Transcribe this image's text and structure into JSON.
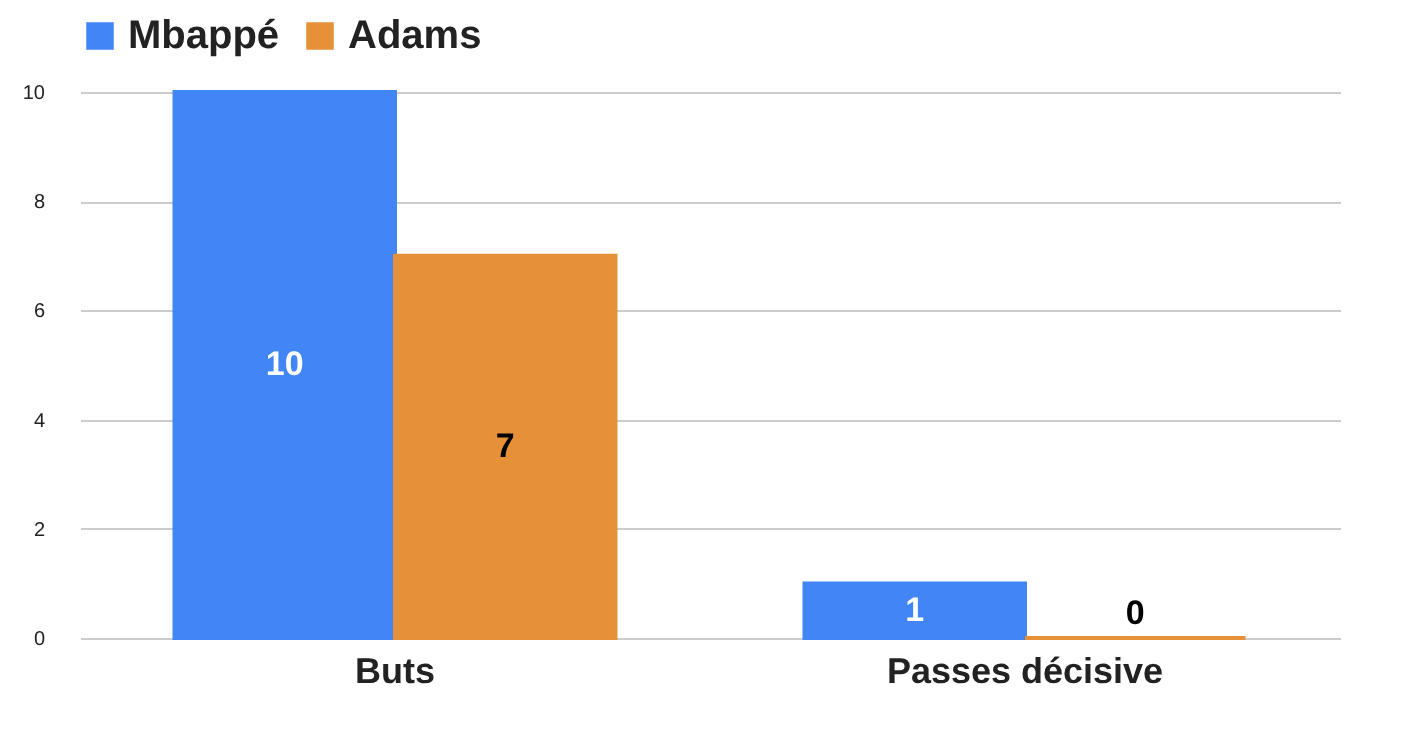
{
  "chart_data": {
    "type": "bar",
    "categories": [
      "Buts",
      "Passes décisive"
    ],
    "series": [
      {
        "name": "Mbappé",
        "color": "#4285f4",
        "values": [
          10,
          1
        ]
      },
      {
        "name": "Adams",
        "color": "#e69138",
        "values": [
          7,
          0
        ]
      }
    ],
    "ylim": [
      0,
      10
    ],
    "yticks": [
      0,
      2,
      4,
      6,
      8,
      10
    ],
    "grid": "y",
    "legend": "top",
    "data_labels": true
  }
}
